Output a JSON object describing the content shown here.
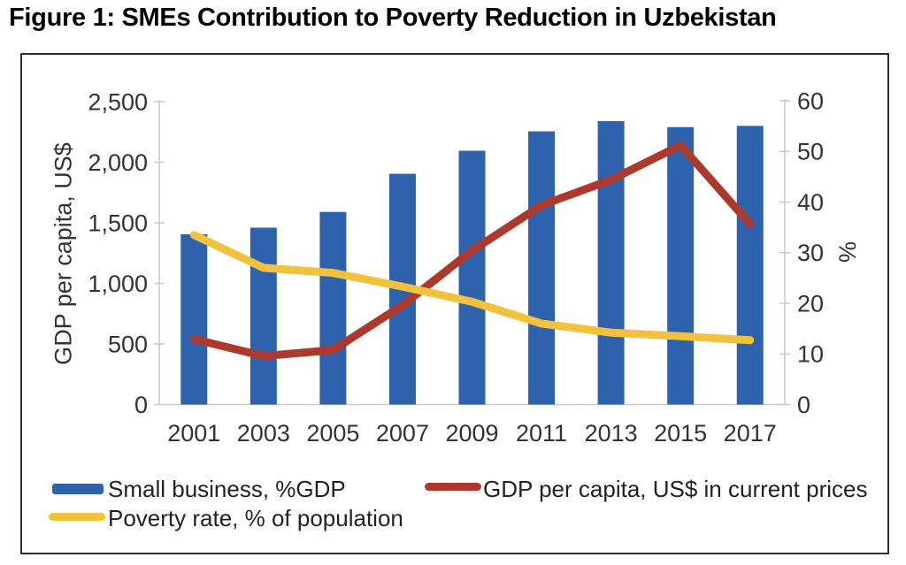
{
  "figure": {
    "title": "Figure 1: SMEs Contribution to Poverty Reduction in Uzbekistan"
  },
  "chart_data": {
    "type": "combo",
    "categories": [
      "2001",
      "2003",
      "2005",
      "2007",
      "2009",
      "2011",
      "2013",
      "2015",
      "2017"
    ],
    "series": [
      {
        "name": "Small business, %GDP",
        "type": "bar",
        "axis": "left",
        "color": "#2E62AC",
        "values": [
          1405,
          1460,
          1590,
          1905,
          2095,
          2255,
          2340,
          2290,
          2300
        ]
      },
      {
        "name": "GDP per capita, US$ in current prices",
        "type": "line",
        "axis": "left",
        "color": "#AC392B",
        "values": [
          540,
          400,
          450,
          820,
          1270,
          1645,
          1855,
          2140,
          1490
        ]
      },
      {
        "name": "Poverty rate, % of population",
        "type": "line",
        "axis": "right",
        "color": "#F0C23E",
        "values": [
          33.5,
          27,
          26,
          23.3,
          20.3,
          16,
          14.2,
          13.5,
          12.7
        ]
      }
    ],
    "left_axis": {
      "label": "GDP per capita, US$",
      "min": 0,
      "max": 2500,
      "tick_values": [
        0,
        500,
        1000,
        1500,
        2000,
        2500
      ],
      "tick_labels": [
        "0",
        "500",
        "1,000",
        "1,500",
        "2,000",
        "2,500"
      ]
    },
    "right_axis": {
      "label": "%",
      "min": 0,
      "max": 60,
      "tick_values": [
        0,
        10,
        20,
        30,
        40,
        50,
        60
      ],
      "tick_labels": [
        "0",
        "10",
        "20",
        "30",
        "40",
        "50",
        "60"
      ]
    },
    "grid": false,
    "legend_position": "bottom-left",
    "styles": {
      "axis_line_color": "#C9C9C9",
      "tick_text_color": "#333333",
      "frame_border_color": "#2E2E2E",
      "background": "#FFFFFF"
    }
  }
}
